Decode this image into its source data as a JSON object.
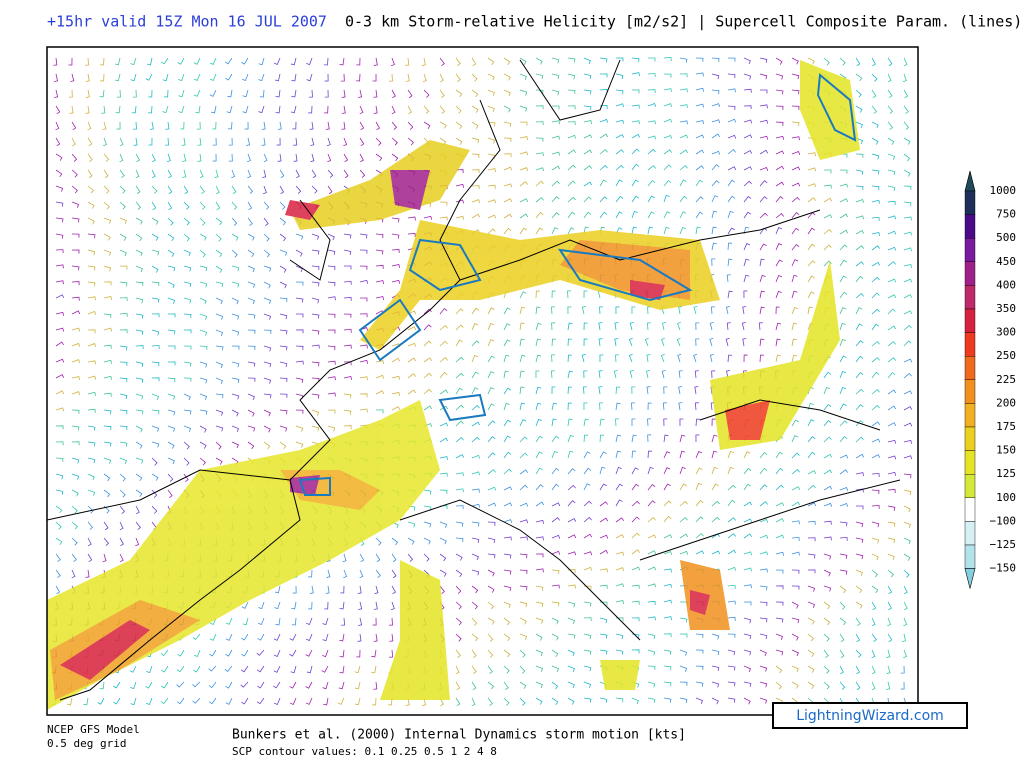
{
  "header": {
    "valid": "+15hr valid 15Z Mon 16 JUL 2007",
    "title": "0-3 km Storm-relative Helicity [m2/s2] | Supercell Composite Param. (lines)"
  },
  "colorbar": {
    "top_color": "#1e4a5c",
    "labels": [
      "1000",
      "750",
      "500",
      "450",
      "400",
      "350",
      "300",
      "250",
      "225",
      "200",
      "175",
      "150",
      "125",
      "100",
      "−100",
      "−125",
      "−150"
    ],
    "colors": [
      "#1d2f5a",
      "#4b0a8a",
      "#7a1a9e",
      "#a0208a",
      "#c02a6a",
      "#d82040",
      "#ee3a1e",
      "#f06a1e",
      "#f2901e",
      "#f2b020",
      "#ecd020",
      "#e4e424",
      "#d4e838",
      "#ffffff",
      "#d6eff2",
      "#b2e2ea",
      "#84d0e0"
    ]
  },
  "footer": {
    "model": "NCEP GFS Model",
    "grid": "0.5 deg grid",
    "motion": "Bunkers et al. (2000) Internal Dynamics storm motion [kts]",
    "scp": "SCP contour values: 0.1 0.25 0.5 1 2 4 8",
    "site": "LightningWizard.com"
  }
}
